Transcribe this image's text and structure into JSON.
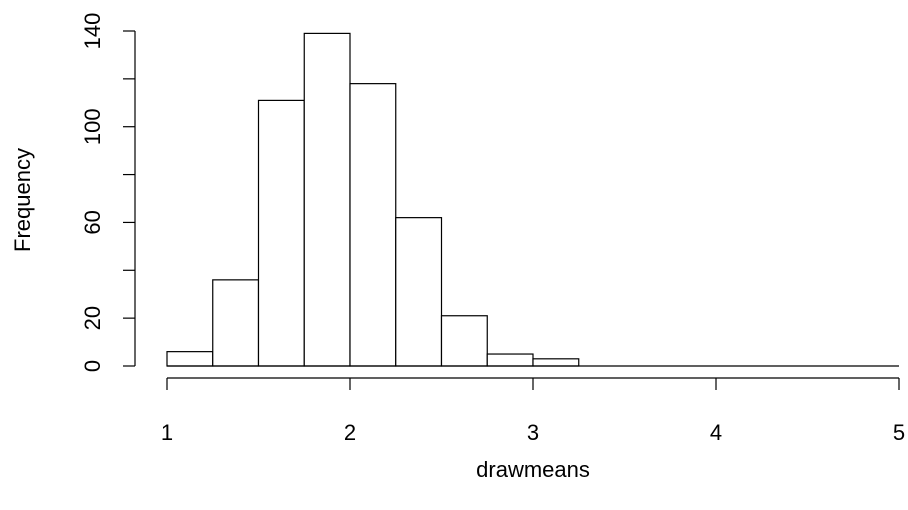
{
  "chart_data": {
    "type": "bar",
    "title": "",
    "xlabel": "drawmeans",
    "ylabel": "Frequency",
    "bin_edges": [
      1.0,
      1.25,
      1.5,
      1.75,
      2.0,
      2.25,
      2.5,
      2.75,
      3.0,
      3.25,
      3.5,
      3.75,
      4.0,
      4.25,
      4.5,
      4.75,
      5.0
    ],
    "values": [
      6,
      36,
      111,
      139,
      118,
      62,
      21,
      5,
      3,
      0,
      0,
      0,
      0,
      0,
      0,
      0
    ],
    "xlim": [
      1,
      5
    ],
    "ylim": [
      0,
      140
    ],
    "x_ticks": [
      1,
      2,
      3,
      4,
      5
    ],
    "x_tick_labels": [
      "1",
      "2",
      "3",
      "4",
      "5"
    ],
    "y_ticks": [
      0,
      20,
      60,
      100,
      140
    ],
    "y_tick_labels": [
      "0",
      "20",
      "60",
      "100",
      "140"
    ],
    "y_minor_ticks": [
      40,
      80,
      120
    ],
    "grid": false,
    "legend": "none"
  }
}
